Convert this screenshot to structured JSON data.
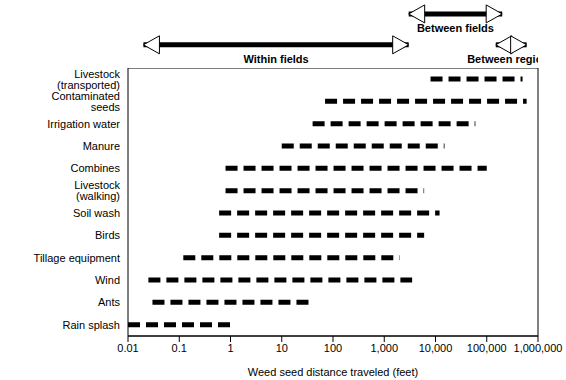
{
  "chart_data": {
    "type": "range_bar",
    "orientation": "horizontal",
    "log": "x",
    "x_label": "Weed seed distance traveled (feet)",
    "categories": [
      "Livestock (transported)",
      "Contaminated seeds",
      "Irrigation water",
      "Manure",
      "Combines",
      "Livestock (walking)",
      "Soil wash",
      "Birds",
      "Tillage equipment",
      "Wind",
      "Ants",
      "Rain splash"
    ],
    "values": [
      [
        8000,
        500000
      ],
      [
        70,
        600000
      ],
      [
        40,
        60000
      ],
      [
        10,
        15000
      ],
      [
        0.8,
        100000
      ],
      [
        0.8,
        6000
      ],
      [
        0.6,
        12000
      ],
      [
        0.6,
        6000
      ],
      [
        0.12,
        2000
      ],
      [
        0.025,
        3500
      ],
      [
        0.03,
        40
      ],
      [
        0.01,
        1
      ]
    ],
    "color": "#000000",
    "line_style": "dashed",
    "xlim": [
      0.01,
      1000000
    ],
    "xticks": [
      0.01,
      0.1,
      1,
      10,
      100,
      {
        "value": 1000,
        "label": "1,000"
      },
      {
        "value": 10000,
        "label": "10,000"
      },
      {
        "value": 100000,
        "label": "100,000"
      },
      {
        "value": 1000000,
        "label": "1,000,000"
      }
    ],
    "annotations": [
      {
        "text": "Within fields",
        "x_range": [
          0.02,
          3000
        ]
      },
      {
        "text": "Between fields",
        "x_range": [
          3000,
          200000
        ]
      },
      {
        "text": "Between regions",
        "x_range": [
          150000,
          600000
        ]
      }
    ]
  }
}
